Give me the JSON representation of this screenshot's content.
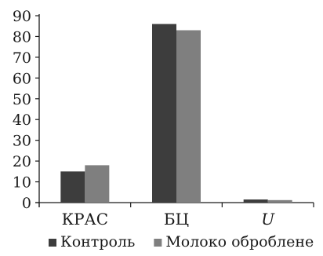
{
  "chart_data": {
    "type": "bar",
    "categories": [
      "КРАС",
      "БЦ",
      "U"
    ],
    "category_styles": [
      "normal",
      "normal",
      "italic"
    ],
    "series": [
      {
        "name": "Контроль",
        "values": [
          15,
          86,
          1.5
        ],
        "color": "#3d3d3d"
      },
      {
        "name": "Молоко оброблене",
        "values": [
          18,
          83,
          1.2
        ],
        "color": "#7f7f7f"
      }
    ],
    "y_ticks": [
      0,
      10,
      20,
      30,
      40,
      50,
      60,
      70,
      80,
      90
    ],
    "ylim": [
      0,
      90
    ],
    "grid": false,
    "legend_position": "bottom"
  }
}
